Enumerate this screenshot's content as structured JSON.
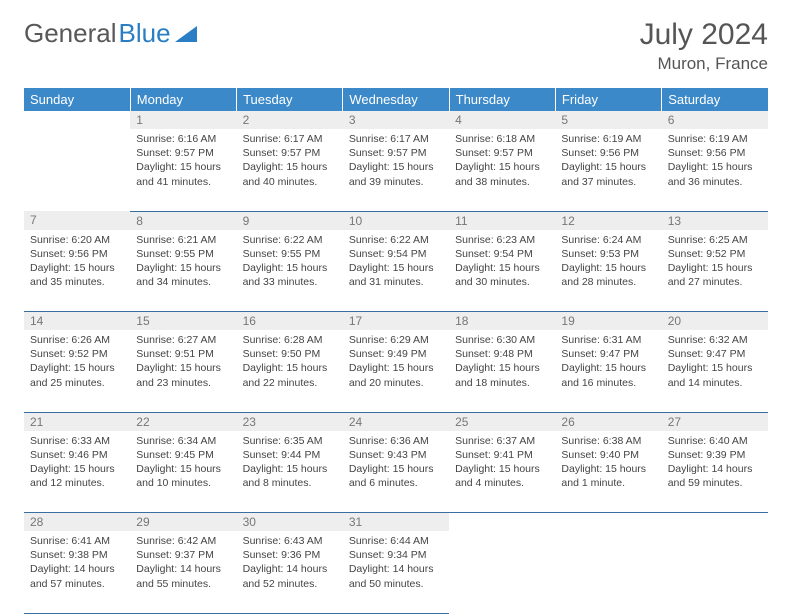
{
  "logo": {
    "text1": "General",
    "text2": "Blue"
  },
  "title": "July 2024",
  "location": "Muron, France",
  "colors": {
    "header_bg": "#3b89c9",
    "header_text": "#ffffff",
    "daynum_bg": "#eeeeee",
    "daynum_text": "#777777",
    "row_border": "#386fa3",
    "body_text": "#444444",
    "title_text": "#555555"
  },
  "weekdays": [
    "Sunday",
    "Monday",
    "Tuesday",
    "Wednesday",
    "Thursday",
    "Friday",
    "Saturday"
  ],
  "weeks": [
    [
      null,
      {
        "n": "1",
        "sr": "6:16 AM",
        "ss": "9:57 PM",
        "dl": "15 hours and 41 minutes."
      },
      {
        "n": "2",
        "sr": "6:17 AM",
        "ss": "9:57 PM",
        "dl": "15 hours and 40 minutes."
      },
      {
        "n": "3",
        "sr": "6:17 AM",
        "ss": "9:57 PM",
        "dl": "15 hours and 39 minutes."
      },
      {
        "n": "4",
        "sr": "6:18 AM",
        "ss": "9:57 PM",
        "dl": "15 hours and 38 minutes."
      },
      {
        "n": "5",
        "sr": "6:19 AM",
        "ss": "9:56 PM",
        "dl": "15 hours and 37 minutes."
      },
      {
        "n": "6",
        "sr": "6:19 AM",
        "ss": "9:56 PM",
        "dl": "15 hours and 36 minutes."
      }
    ],
    [
      {
        "n": "7",
        "sr": "6:20 AM",
        "ss": "9:56 PM",
        "dl": "15 hours and 35 minutes."
      },
      {
        "n": "8",
        "sr": "6:21 AM",
        "ss": "9:55 PM",
        "dl": "15 hours and 34 minutes."
      },
      {
        "n": "9",
        "sr": "6:22 AM",
        "ss": "9:55 PM",
        "dl": "15 hours and 33 minutes."
      },
      {
        "n": "10",
        "sr": "6:22 AM",
        "ss": "9:54 PM",
        "dl": "15 hours and 31 minutes."
      },
      {
        "n": "11",
        "sr": "6:23 AM",
        "ss": "9:54 PM",
        "dl": "15 hours and 30 minutes."
      },
      {
        "n": "12",
        "sr": "6:24 AM",
        "ss": "9:53 PM",
        "dl": "15 hours and 28 minutes."
      },
      {
        "n": "13",
        "sr": "6:25 AM",
        "ss": "9:52 PM",
        "dl": "15 hours and 27 minutes."
      }
    ],
    [
      {
        "n": "14",
        "sr": "6:26 AM",
        "ss": "9:52 PM",
        "dl": "15 hours and 25 minutes."
      },
      {
        "n": "15",
        "sr": "6:27 AM",
        "ss": "9:51 PM",
        "dl": "15 hours and 23 minutes."
      },
      {
        "n": "16",
        "sr": "6:28 AM",
        "ss": "9:50 PM",
        "dl": "15 hours and 22 minutes."
      },
      {
        "n": "17",
        "sr": "6:29 AM",
        "ss": "9:49 PM",
        "dl": "15 hours and 20 minutes."
      },
      {
        "n": "18",
        "sr": "6:30 AM",
        "ss": "9:48 PM",
        "dl": "15 hours and 18 minutes."
      },
      {
        "n": "19",
        "sr": "6:31 AM",
        "ss": "9:47 PM",
        "dl": "15 hours and 16 minutes."
      },
      {
        "n": "20",
        "sr": "6:32 AM",
        "ss": "9:47 PM",
        "dl": "15 hours and 14 minutes."
      }
    ],
    [
      {
        "n": "21",
        "sr": "6:33 AM",
        "ss": "9:46 PM",
        "dl": "15 hours and 12 minutes."
      },
      {
        "n": "22",
        "sr": "6:34 AM",
        "ss": "9:45 PM",
        "dl": "15 hours and 10 minutes."
      },
      {
        "n": "23",
        "sr": "6:35 AM",
        "ss": "9:44 PM",
        "dl": "15 hours and 8 minutes."
      },
      {
        "n": "24",
        "sr": "6:36 AM",
        "ss": "9:43 PM",
        "dl": "15 hours and 6 minutes."
      },
      {
        "n": "25",
        "sr": "6:37 AM",
        "ss": "9:41 PM",
        "dl": "15 hours and 4 minutes."
      },
      {
        "n": "26",
        "sr": "6:38 AM",
        "ss": "9:40 PM",
        "dl": "15 hours and 1 minute."
      },
      {
        "n": "27",
        "sr": "6:40 AM",
        "ss": "9:39 PM",
        "dl": "14 hours and 59 minutes."
      }
    ],
    [
      {
        "n": "28",
        "sr": "6:41 AM",
        "ss": "9:38 PM",
        "dl": "14 hours and 57 minutes."
      },
      {
        "n": "29",
        "sr": "6:42 AM",
        "ss": "9:37 PM",
        "dl": "14 hours and 55 minutes."
      },
      {
        "n": "30",
        "sr": "6:43 AM",
        "ss": "9:36 PM",
        "dl": "14 hours and 52 minutes."
      },
      {
        "n": "31",
        "sr": "6:44 AM",
        "ss": "9:34 PM",
        "dl": "14 hours and 50 minutes."
      },
      null,
      null,
      null
    ]
  ],
  "labels": {
    "sunrise": "Sunrise: ",
    "sunset": "Sunset: ",
    "daylight": "Daylight: "
  }
}
